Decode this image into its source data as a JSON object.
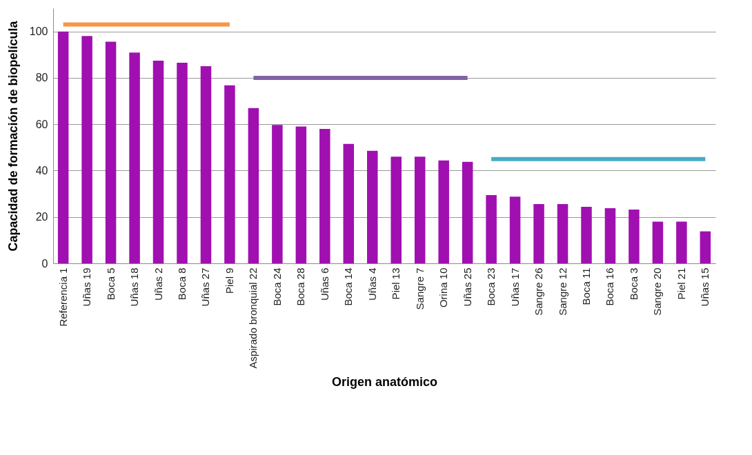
{
  "chart_data": {
    "type": "bar",
    "xlabel": "Origen anatómico",
    "ylabel": "Capacidad de formación de biopelícula",
    "categories": [
      "Referencia 1",
      "Uñas 19",
      "Boca 5",
      "Uñas 18",
      "Uñas 2",
      "Boca 8",
      "Uñas 27",
      "Piel 9",
      "Aspirado bronquial 22",
      "Boca 24",
      "Boca 28",
      "Uñas 6",
      "Boca 14",
      "Uñas 4",
      "Piel 13",
      "Sangre 7",
      "Orina 10",
      "Uñas 25",
      "Boca 23",
      "Uñas 17",
      "Sangre 26",
      "Sangre 12",
      "Boca 11",
      "Boca 16",
      "Boca 3",
      "Sangre 20",
      "Piel 21",
      "Uñas 15"
    ],
    "series": [
      {
        "color": "#a010b0",
        "values": [
          100,
          98,
          95.6,
          90.9,
          87.4,
          86.5,
          85,
          76.8,
          67,
          59.7,
          59,
          58,
          51.5,
          48.5,
          46,
          46,
          44.4,
          43.8,
          29.4,
          28.8,
          25.6,
          25.6,
          24.4,
          23.8,
          23.2,
          18,
          18,
          13.8
        ]
      },
      {
        "type": "line",
        "color": "#f79646",
        "values": [
          103,
          103,
          103,
          103,
          103,
          103,
          103,
          103,
          null,
          null,
          null,
          null,
          null,
          null,
          null,
          null,
          null,
          null,
          null,
          null,
          null,
          null,
          null,
          null,
          null,
          null,
          null,
          null
        ]
      },
      {
        "type": "line",
        "color": "#8064a2",
        "values": [
          null,
          null,
          null,
          null,
          null,
          null,
          null,
          null,
          80,
          80,
          80,
          80,
          80,
          80,
          80,
          80,
          80,
          80,
          null,
          null,
          null,
          null,
          null,
          null,
          null,
          null,
          null,
          null
        ]
      },
      {
        "type": "line",
        "color": "#4bacc6",
        "values": [
          null,
          null,
          null,
          null,
          null,
          null,
          null,
          null,
          null,
          null,
          null,
          null,
          null,
          null,
          null,
          null,
          null,
          null,
          45,
          45,
          45,
          45,
          45,
          45,
          45,
          45,
          45,
          45
        ]
      }
    ],
    "ylim": [
      0,
      110
    ],
    "yticks": [
      0,
      20,
      40,
      60,
      80,
      100
    ],
    "grid": "y",
    "legend": false
  }
}
